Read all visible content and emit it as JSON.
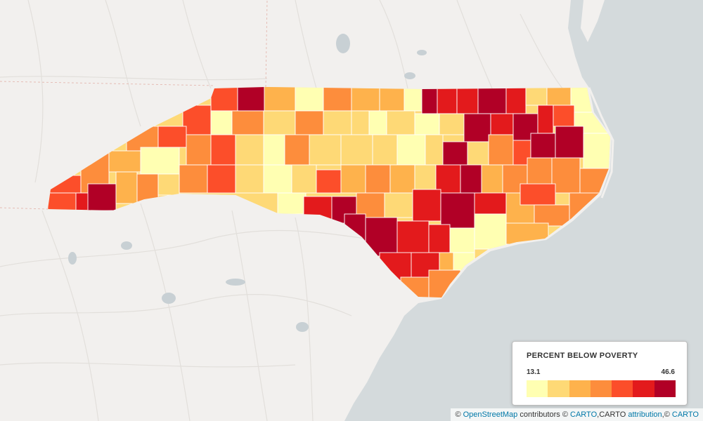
{
  "legend": {
    "title": "PERCENT BELOW POVERTY",
    "min_label": "13.1",
    "max_label": "46.6",
    "min": 13.1,
    "max": 46.6,
    "colors": [
      "#ffffb2",
      "#fed976",
      "#feb24c",
      "#fd8d3c",
      "#fc4e2a",
      "#e31a1c",
      "#b10026"
    ]
  },
  "attribution": {
    "prefix": "© ",
    "osm_link": "OpenStreetMap",
    "middle": " contributors © ",
    "carto_link": "CARTO",
    "comma": ",CARTO ",
    "attribution_link": "attribution",
    "suffix": ",© ",
    "carto_link_2": "CARTO"
  }
}
